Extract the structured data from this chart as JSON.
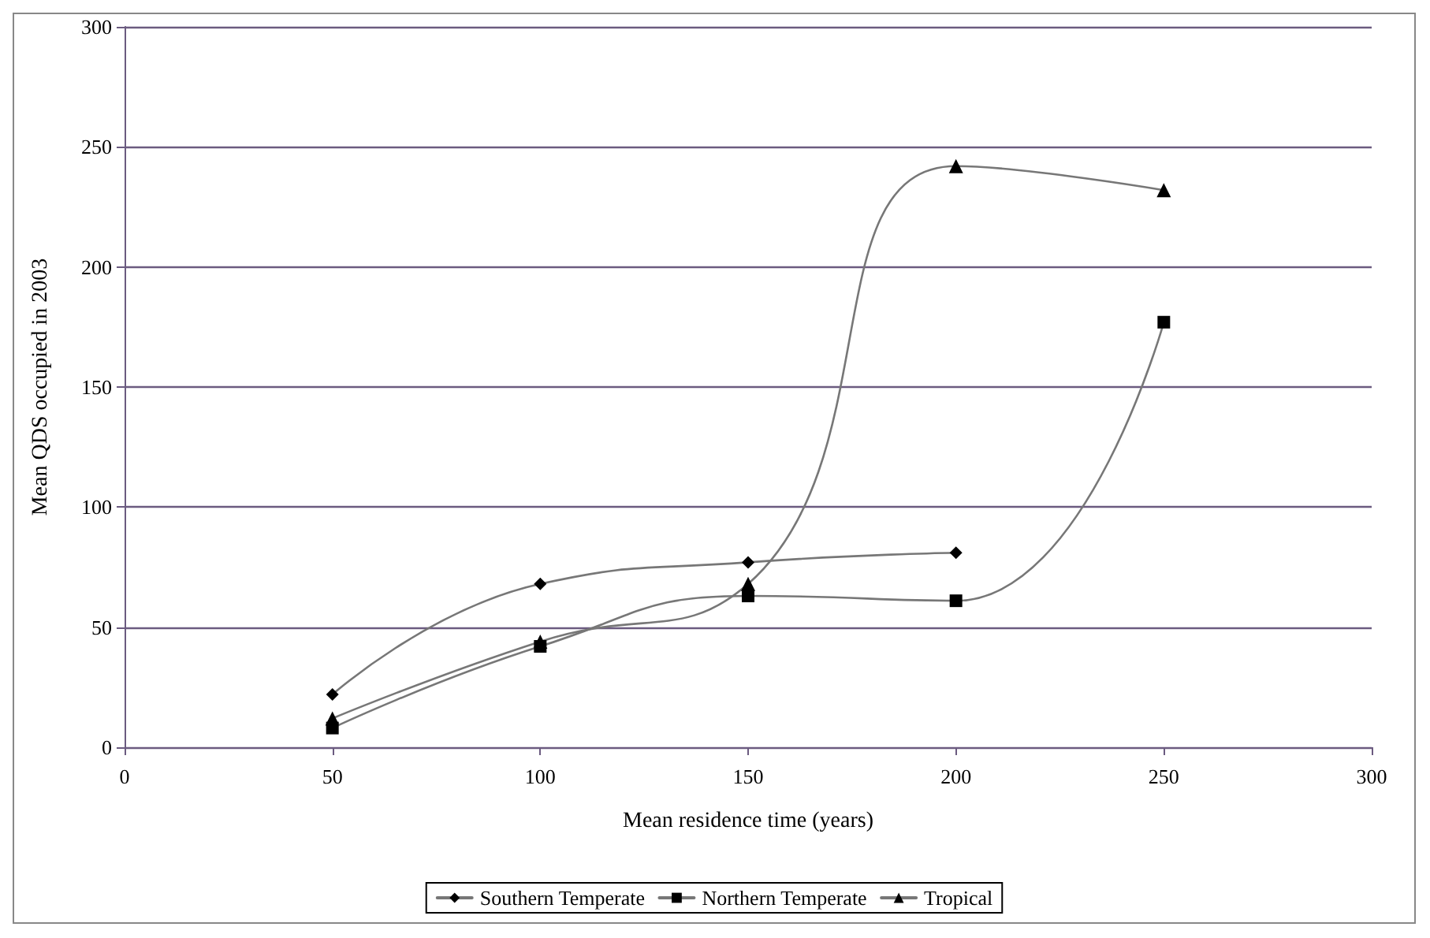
{
  "chart_data": {
    "type": "line",
    "xlabel": "Mean residence time (years)",
    "ylabel": "Mean QDS occupied in 2003",
    "x": [
      50,
      100,
      150,
      200,
      250
    ],
    "series": [
      {
        "name": "Southern Temperate",
        "color": "#000000",
        "marker": "diamond",
        "values": [
          22,
          68,
          77,
          81,
          null
        ]
      },
      {
        "name": "Northern Temperate",
        "color": "#000000",
        "marker": "square",
        "values": [
          8,
          42,
          63,
          61,
          177
        ]
      },
      {
        "name": "Tropical",
        "color": "#000000",
        "marker": "triangle",
        "values": [
          12,
          44,
          68,
          242,
          232
        ]
      }
    ],
    "xlim": [
      0,
      300
    ],
    "xticks": [
      0,
      50,
      100,
      150,
      200,
      250,
      300
    ],
    "ylim": [
      0,
      300
    ],
    "yticks": [
      0,
      50,
      100,
      150,
      200,
      250,
      300
    ],
    "grid": "y",
    "legend": "bottom",
    "line_style": "solid"
  }
}
